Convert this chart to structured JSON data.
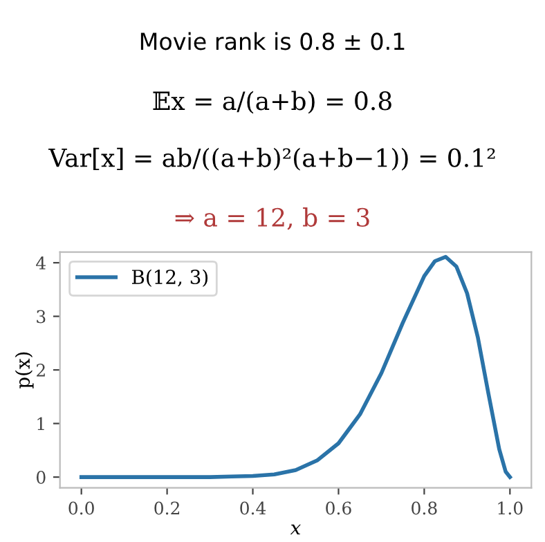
{
  "chart_data": {
    "type": "line",
    "title": "Movie rank is 0.8 ± 0.1",
    "annotations": [
      "𝔼x = a/(a+b) = 0.8",
      "Var[x] = ab/((a+b)²(a+b−1)) = 0.1²",
      "⇒ a = 12, b = 3"
    ],
    "xlabel": "x",
    "ylabel": "p(x)",
    "series": [
      {
        "name": "B(12, 3)",
        "color": "#2a73a8",
        "x": [
          0.0,
          0.1,
          0.2,
          0.3,
          0.35,
          0.4,
          0.45,
          0.5,
          0.55,
          0.6,
          0.65,
          0.7,
          0.75,
          0.8,
          0.825,
          0.85,
          0.875,
          0.9,
          0.925,
          0.95,
          0.975,
          0.99,
          1.0
        ],
        "values": [
          0,
          0,
          0,
          0,
          0.01,
          0.02,
          0.05,
          0.13,
          0.31,
          0.63,
          1.17,
          1.94,
          2.88,
          3.75,
          4.03,
          4.11,
          3.93,
          3.43,
          2.61,
          1.55,
          0.52,
          0.1,
          0
        ]
      }
    ],
    "xlim": [
      -0.05,
      1.05
    ],
    "ylim": [
      -0.2,
      4.2
    ],
    "xticks": [
      {
        "value": 0,
        "label": "0.0"
      },
      {
        "value": 0.2,
        "label": "0.2"
      },
      {
        "value": 0.4,
        "label": "0.4"
      },
      {
        "value": 0.6,
        "label": "0.6"
      },
      {
        "value": 0.8,
        "label": "0.8"
      },
      {
        "value": 1,
        "label": "1.0"
      }
    ],
    "yticks": [
      0,
      1,
      2,
      3,
      4
    ],
    "legend": "top left",
    "grid": false,
    "marker": "none",
    "line_style": "solid"
  }
}
